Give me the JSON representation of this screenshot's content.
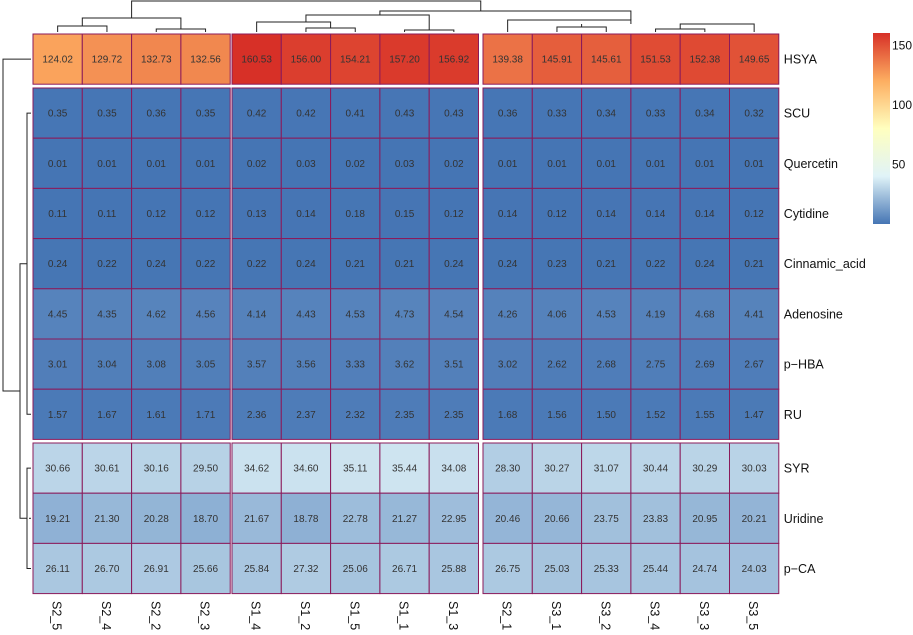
{
  "chart_data": {
    "type": "heatmap",
    "title": "",
    "rows": [
      "HSYA",
      "SCU",
      "Quercetin",
      "Cytidine",
      "Cinnamic_acid",
      "Adenosine",
      "p−HBA",
      "RU",
      "SYR",
      "Uridine",
      "p−CA"
    ],
    "columns": [
      "S2_5",
      "S2_4",
      "S2_2",
      "S2_3",
      "S1_4",
      "S1_2",
      "S1_5",
      "S1_1",
      "S1_3",
      "S2_1",
      "S3_1",
      "S3_2",
      "S3_4",
      "S3_3",
      "S3_5"
    ],
    "values": [
      [
        "124.02",
        "129.72",
        "132.73",
        "132.56",
        "160.53",
        "156.00",
        "154.21",
        "157.20",
        "156.92",
        "139.38",
        "145.91",
        "145.61",
        "151.53",
        "152.38",
        "149.65"
      ],
      [
        "0.35",
        "0.35",
        "0.36",
        "0.35",
        "0.42",
        "0.42",
        "0.41",
        "0.43",
        "0.43",
        "0.36",
        "0.33",
        "0.34",
        "0.33",
        "0.34",
        "0.32"
      ],
      [
        "0.01",
        "0.01",
        "0.01",
        "0.01",
        "0.02",
        "0.03",
        "0.02",
        "0.03",
        "0.02",
        "0.01",
        "0.01",
        "0.01",
        "0.01",
        "0.01",
        "0.01"
      ],
      [
        "0.11",
        "0.11",
        "0.12",
        "0.12",
        "0.13",
        "0.14",
        "0.18",
        "0.15",
        "0.12",
        "0.14",
        "0.12",
        "0.14",
        "0.14",
        "0.14",
        "0.12"
      ],
      [
        "0.24",
        "0.22",
        "0.24",
        "0.22",
        "0.22",
        "0.24",
        "0.21",
        "0.21",
        "0.24",
        "0.24",
        "0.23",
        "0.21",
        "0.22",
        "0.24",
        "0.21"
      ],
      [
        "4.45",
        "4.35",
        "4.62",
        "4.56",
        "4.14",
        "4.43",
        "4.53",
        "4.73",
        "4.54",
        "4.26",
        "4.06",
        "4.53",
        "4.19",
        "4.68",
        "4.41"
      ],
      [
        "3.01",
        "3.04",
        "3.08",
        "3.05",
        "3.57",
        "3.56",
        "3.33",
        "3.62",
        "3.51",
        "3.02",
        "2.62",
        "2.68",
        "2.75",
        "2.69",
        "2.67"
      ],
      [
        "1.57",
        "1.67",
        "1.61",
        "1.71",
        "2.36",
        "2.37",
        "2.32",
        "2.35",
        "2.35",
        "1.68",
        "1.56",
        "1.50",
        "1.52",
        "1.55",
        "1.47"
      ],
      [
        "30.66",
        "30.61",
        "30.16",
        "29.50",
        "34.62",
        "34.60",
        "35.11",
        "35.44",
        "34.08",
        "28.30",
        "30.27",
        "31.07",
        "30.44",
        "30.29",
        "30.03"
      ],
      [
        "19.21",
        "21.30",
        "20.28",
        "18.70",
        "21.67",
        "18.78",
        "22.78",
        "21.27",
        "22.95",
        "20.46",
        "20.66",
        "23.75",
        "23.83",
        "20.95",
        "20.21"
      ],
      [
        "26.11",
        "26.70",
        "26.91",
        "25.66",
        "25.84",
        "27.32",
        "25.06",
        "26.71",
        "25.88",
        "26.75",
        "25.03",
        "25.33",
        "25.44",
        "24.74",
        "24.03"
      ]
    ],
    "row_split_after": [
      0,
      7
    ],
    "column_split_after": [
      3,
      8
    ],
    "legend": {
      "ticks": [
        50,
        100,
        150
      ],
      "tick_labels": [
        "50",
        "100",
        "150"
      ],
      "range": [
        0,
        160.53
      ],
      "colors": [
        "#4575b4",
        "#e0f3f8",
        "#ffffbf",
        "#fdae61",
        "#d73027"
      ],
      "placement": "top-right"
    },
    "cell_border_color": "#8b1a5a",
    "row_dendrogram": "left",
    "column_dendrogram": "top"
  }
}
